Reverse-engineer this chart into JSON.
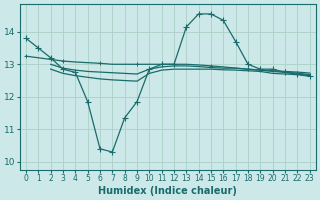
{
  "xlabel": "Humidex (Indice chaleur)",
  "background_color": "#cce8e8",
  "grid_color": "#b0d4cc",
  "line_color": "#1a6b6b",
  "xlim": [
    -0.5,
    23.5
  ],
  "ylim": [
    9.75,
    14.85
  ],
  "x_ticks": [
    0,
    1,
    2,
    3,
    4,
    5,
    6,
    7,
    8,
    9,
    10,
    11,
    12,
    13,
    14,
    15,
    16,
    17,
    18,
    19,
    20,
    21,
    22,
    23
  ],
  "y_ticks": [
    10,
    11,
    12,
    13,
    14
  ],
  "line1_x": [
    0,
    1,
    2,
    3,
    4,
    5,
    6,
    7,
    8,
    9,
    10,
    11,
    12,
    13,
    14,
    15,
    16,
    17,
    18,
    19,
    20,
    21,
    22,
    23
  ],
  "line1_y": [
    13.8,
    13.5,
    13.2,
    12.85,
    12.75,
    11.85,
    10.4,
    10.3,
    11.35,
    11.85,
    12.85,
    13.0,
    13.0,
    14.15,
    14.55,
    14.55,
    14.35,
    13.7,
    13.0,
    12.85,
    12.85,
    12.75,
    12.7,
    12.65
  ],
  "line2_x": [
    0,
    1,
    2,
    3,
    4,
    5,
    6,
    7,
    8,
    9,
    10,
    11,
    12,
    13,
    14,
    15,
    16,
    17,
    18,
    19,
    20,
    21,
    22,
    23
  ],
  "line2_y": [
    13.25,
    13.2,
    13.15,
    13.1,
    13.07,
    13.05,
    13.03,
    13.0,
    13.0,
    13.0,
    13.0,
    13.0,
    13.0,
    13.0,
    12.98,
    12.95,
    12.92,
    12.88,
    12.85,
    12.82,
    12.8,
    12.78,
    12.76,
    12.73
  ],
  "line3_x": [
    2,
    3,
    4,
    5,
    6,
    7,
    8,
    9,
    10,
    11,
    12,
    13,
    14,
    15,
    16,
    17,
    18,
    19,
    20,
    21,
    22,
    23
  ],
  "line3_y": [
    12.85,
    12.72,
    12.65,
    12.6,
    12.55,
    12.52,
    12.5,
    12.48,
    12.72,
    12.82,
    12.85,
    12.85,
    12.85,
    12.85,
    12.83,
    12.82,
    12.8,
    12.78,
    12.72,
    12.7,
    12.68,
    12.63
  ],
  "line4_x": [
    2,
    3,
    4,
    5,
    6,
    7,
    8,
    9,
    10,
    11,
    12,
    13,
    14,
    15,
    16,
    17,
    18,
    19,
    20,
    21,
    22,
    23
  ],
  "line4_y": [
    13.0,
    12.88,
    12.82,
    12.78,
    12.76,
    12.74,
    12.72,
    12.7,
    12.85,
    12.92,
    12.95,
    12.95,
    12.93,
    12.9,
    12.88,
    12.88,
    12.85,
    12.82,
    12.78,
    12.75,
    12.73,
    12.68
  ]
}
